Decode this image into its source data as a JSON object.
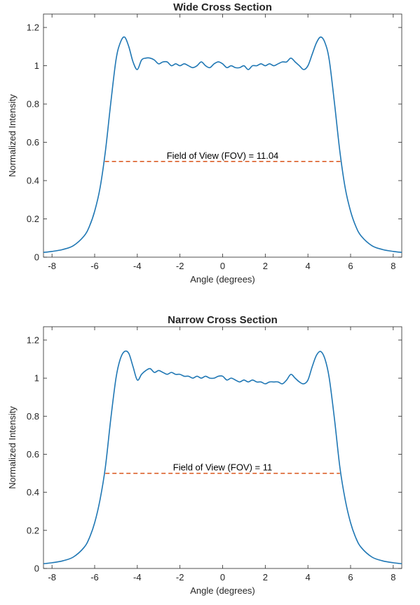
{
  "figure": {
    "style": {
      "line_color": "#1f77b4",
      "fov_line_color": "#d95319",
      "axis_color": "#262626"
    }
  },
  "chart_data": [
    {
      "type": "line",
      "title": "Wide Cross Section",
      "xlabel": "Angle (degrees)",
      "ylabel": "Normalized Intensity",
      "xlim": [
        -8.4,
        8.4
      ],
      "ylim": [
        0,
        1.27
      ],
      "xticks": [
        -8,
        -6,
        -4,
        -2,
        0,
        2,
        4,
        6,
        8
      ],
      "yticks": [
        0,
        0.2,
        0.4,
        0.6,
        0.8,
        1,
        1.2
      ],
      "xtick_labels": [
        "-8",
        "-6",
        "-4",
        "-2",
        "0",
        "2",
        "4",
        "6",
        "8"
      ],
      "ytick_labels": [
        "0",
        "0.2",
        "0.4",
        "0.6",
        "0.8",
        "1",
        "1.2"
      ],
      "grid": false,
      "series": [
        {
          "x": [
            -8.4,
            -8.0,
            -7.5,
            -7.0,
            -6.5,
            -6.25,
            -6.0,
            -5.75,
            -5.5,
            -5.25,
            -5.0,
            -4.8,
            -4.6,
            -4.4,
            -4.2,
            -4.0,
            -3.8,
            -3.6,
            -3.4,
            -3.2,
            -3.0,
            -2.8,
            -2.6,
            -2.4,
            -2.2,
            -2.0,
            -1.8,
            -1.6,
            -1.4,
            -1.2,
            -1.0,
            -0.8,
            -0.6,
            -0.4,
            -0.2,
            0.0,
            0.2,
            0.4,
            0.6,
            0.8,
            1.0,
            1.2,
            1.4,
            1.6,
            1.8,
            2.0,
            2.2,
            2.4,
            2.6,
            2.8,
            3.0,
            3.2,
            3.4,
            3.6,
            3.8,
            4.0,
            4.2,
            4.4,
            4.6,
            4.8,
            5.0,
            5.25,
            5.5,
            5.75,
            6.0,
            6.25,
            6.5,
            7.0,
            7.5,
            8.0,
            8.4
          ],
          "y": [
            0.025,
            0.03,
            0.04,
            0.06,
            0.11,
            0.16,
            0.24,
            0.36,
            0.55,
            0.8,
            1.03,
            1.12,
            1.15,
            1.1,
            1.02,
            0.98,
            1.03,
            1.04,
            1.04,
            1.03,
            1.01,
            1.02,
            1.02,
            1.0,
            1.01,
            1.0,
            1.01,
            1.0,
            0.99,
            1.0,
            1.02,
            1.0,
            0.99,
            1.01,
            1.02,
            1.01,
            0.99,
            1.0,
            0.99,
            0.99,
            1.0,
            0.98,
            1.0,
            1.0,
            1.01,
            1.0,
            1.01,
            1.0,
            1.01,
            1.02,
            1.02,
            1.04,
            1.02,
            1.0,
            0.98,
            1.0,
            1.06,
            1.12,
            1.15,
            1.12,
            1.03,
            0.8,
            0.55,
            0.36,
            0.24,
            0.16,
            0.11,
            0.06,
            0.04,
            0.03,
            0.025
          ]
        },
        {
          "name": "FOV",
          "x": [
            -5.52,
            5.52
          ],
          "y": [
            0.5,
            0.5
          ]
        }
      ],
      "annotation": {
        "text": "Field of View (FOV) = 11.04",
        "x": 0.0,
        "y": 0.5
      }
    },
    {
      "type": "line",
      "title": "Narrow Cross Section",
      "xlabel": "Angle (degrees)",
      "ylabel": "Normalized Intensity",
      "xlim": [
        -8.4,
        8.4
      ],
      "ylim": [
        0,
        1.27
      ],
      "xticks": [
        -8,
        -6,
        -4,
        -2,
        0,
        2,
        4,
        6,
        8
      ],
      "yticks": [
        0,
        0.2,
        0.4,
        0.6,
        0.8,
        1,
        1.2
      ],
      "xtick_labels": [
        "-8",
        "-6",
        "-4",
        "-2",
        "0",
        "2",
        "4",
        "6",
        "8"
      ],
      "ytick_labels": [
        "0",
        "0.2",
        "0.4",
        "0.6",
        "0.8",
        "1",
        "1.2"
      ],
      "grid": false,
      "series": [
        {
          "x": [
            -8.4,
            -8.0,
            -7.5,
            -7.0,
            -6.5,
            -6.25,
            -6.0,
            -5.75,
            -5.5,
            -5.25,
            -5.0,
            -4.8,
            -4.6,
            -4.4,
            -4.2,
            -4.0,
            -3.8,
            -3.6,
            -3.4,
            -3.2,
            -3.0,
            -2.8,
            -2.6,
            -2.4,
            -2.2,
            -2.0,
            -1.8,
            -1.6,
            -1.4,
            -1.2,
            -1.0,
            -0.8,
            -0.6,
            -0.4,
            -0.2,
            0.0,
            0.2,
            0.4,
            0.6,
            0.8,
            1.0,
            1.2,
            1.4,
            1.6,
            1.8,
            2.0,
            2.2,
            2.4,
            2.6,
            2.8,
            3.0,
            3.2,
            3.4,
            3.6,
            3.8,
            4.0,
            4.2,
            4.4,
            4.6,
            4.8,
            5.0,
            5.25,
            5.5,
            5.75,
            6.0,
            6.25,
            6.5,
            7.0,
            7.5,
            8.0,
            8.4
          ],
          "y": [
            0.025,
            0.03,
            0.04,
            0.06,
            0.11,
            0.16,
            0.24,
            0.36,
            0.53,
            0.78,
            1.0,
            1.1,
            1.14,
            1.13,
            1.06,
            0.99,
            1.02,
            1.04,
            1.05,
            1.03,
            1.04,
            1.03,
            1.02,
            1.03,
            1.02,
            1.02,
            1.01,
            1.01,
            1.0,
            1.01,
            1.0,
            1.01,
            1.0,
            1.0,
            1.01,
            1.01,
            0.99,
            1.0,
            0.99,
            0.98,
            0.99,
            0.98,
            0.99,
            0.98,
            0.98,
            0.97,
            0.98,
            0.98,
            0.98,
            0.97,
            0.99,
            1.02,
            1.0,
            0.98,
            0.97,
            0.99,
            1.06,
            1.12,
            1.14,
            1.1,
            1.0,
            0.78,
            0.53,
            0.36,
            0.24,
            0.16,
            0.11,
            0.06,
            0.04,
            0.03,
            0.025
          ]
        },
        {
          "name": "FOV",
          "x": [
            -5.5,
            5.5
          ],
          "y": [
            0.5,
            0.5
          ]
        }
      ],
      "annotation": {
        "text": "Field of View (FOV) = 11",
        "x": 0.0,
        "y": 0.5
      }
    }
  ]
}
